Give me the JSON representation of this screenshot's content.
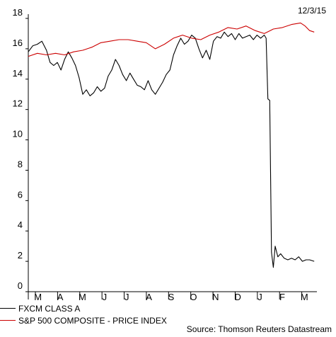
{
  "date_stamp": "12/3/15",
  "source": "Source: Thomson Reuters Datastream",
  "chart_data": {
    "type": "line",
    "x_tick_labels": [
      "M",
      "A",
      "M",
      "J",
      "J",
      "A",
      "S",
      "O",
      "N",
      "D",
      "J",
      "F",
      "M"
    ],
    "y_ticks": [
      0,
      2,
      4,
      6,
      8,
      10,
      12,
      14,
      16,
      18
    ],
    "ylim": [
      0,
      18
    ],
    "grid": false,
    "legend_placement": "bottom-left",
    "series": [
      {
        "name": "FXCM CLASS A",
        "color": "#000000",
        "points": [
          [
            0,
            15.8
          ],
          [
            0.5,
            16.2
          ],
          [
            1,
            16.3
          ],
          [
            1.5,
            16.5
          ],
          [
            2,
            15.9
          ],
          [
            2.4,
            15.1
          ],
          [
            2.8,
            14.9
          ],
          [
            3.2,
            15.1
          ],
          [
            3.6,
            14.6
          ],
          [
            4,
            15.3
          ],
          [
            4.4,
            15.8
          ],
          [
            4.8,
            15.4
          ],
          [
            5.2,
            14.9
          ],
          [
            5.6,
            14.1
          ],
          [
            6,
            13.0
          ],
          [
            6.4,
            13.3
          ],
          [
            6.8,
            12.9
          ],
          [
            7.2,
            13.1
          ],
          [
            7.6,
            13.5
          ],
          [
            8,
            13.2
          ],
          [
            8.4,
            13.4
          ],
          [
            8.8,
            14.2
          ],
          [
            9.2,
            14.6
          ],
          [
            9.6,
            15.3
          ],
          [
            10,
            14.9
          ],
          [
            10.4,
            14.3
          ],
          [
            10.8,
            13.9
          ],
          [
            11.2,
            14.4
          ],
          [
            11.6,
            14.0
          ],
          [
            12,
            13.6
          ],
          [
            12.4,
            13.5
          ],
          [
            12.8,
            13.3
          ],
          [
            13.2,
            13.9
          ],
          [
            13.6,
            13.3
          ],
          [
            14,
            13.0
          ],
          [
            14.4,
            13.4
          ],
          [
            14.8,
            13.8
          ],
          [
            15.2,
            14.3
          ],
          [
            15.6,
            14.6
          ],
          [
            16,
            15.6
          ],
          [
            16.4,
            16.2
          ],
          [
            16.8,
            16.7
          ],
          [
            17.2,
            16.3
          ],
          [
            17.6,
            16.5
          ],
          [
            18,
            16.9
          ],
          [
            18.4,
            16.7
          ],
          [
            18.8,
            16.0
          ],
          [
            19.2,
            15.4
          ],
          [
            19.6,
            15.9
          ],
          [
            20,
            15.3
          ],
          [
            20.4,
            16.5
          ],
          [
            20.8,
            16.8
          ],
          [
            21.2,
            16.7
          ],
          [
            21.6,
            17.1
          ],
          [
            22,
            16.8
          ],
          [
            22.4,
            17.0
          ],
          [
            22.8,
            16.6
          ],
          [
            23.2,
            17.0
          ],
          [
            23.6,
            16.7
          ],
          [
            24,
            16.8
          ],
          [
            24.4,
            16.9
          ],
          [
            24.8,
            16.6
          ],
          [
            25.2,
            16.9
          ],
          [
            25.6,
            16.7
          ],
          [
            26,
            16.9
          ],
          [
            26.2,
            16.7
          ],
          [
            26.4,
            12.7
          ],
          [
            26.6,
            12.6
          ],
          [
            26.8,
            2.6
          ],
          [
            27,
            1.6
          ],
          [
            27.2,
            3.0
          ],
          [
            27.5,
            2.3
          ],
          [
            27.8,
            2.5
          ],
          [
            28.2,
            2.2
          ],
          [
            28.6,
            2.1
          ],
          [
            29,
            2.2
          ],
          [
            29.4,
            2.1
          ],
          [
            29.8,
            2.3
          ],
          [
            30.2,
            2.0
          ],
          [
            30.6,
            2.1
          ],
          [
            31,
            2.1
          ],
          [
            31.5,
            2.0
          ]
        ]
      },
      {
        "name": "S&P 500 COMPOSITE - PRICE INDEX",
        "color": "#cc0000",
        "points": [
          [
            0,
            15.5
          ],
          [
            1,
            15.7
          ],
          [
            2,
            15.6
          ],
          [
            3,
            15.7
          ],
          [
            4,
            15.6
          ],
          [
            5,
            15.8
          ],
          [
            6,
            15.9
          ],
          [
            7,
            16.1
          ],
          [
            8,
            16.4
          ],
          [
            9,
            16.5
          ],
          [
            10,
            16.6
          ],
          [
            11,
            16.6
          ],
          [
            12,
            16.5
          ],
          [
            13,
            16.4
          ],
          [
            14,
            16.0
          ],
          [
            15,
            16.3
          ],
          [
            16,
            16.7
          ],
          [
            17,
            16.9
          ],
          [
            18,
            16.7
          ],
          [
            19,
            16.6
          ],
          [
            20,
            16.9
          ],
          [
            21,
            17.1
          ],
          [
            22,
            17.4
          ],
          [
            23,
            17.3
          ],
          [
            24,
            17.5
          ],
          [
            25,
            17.2
          ],
          [
            26,
            17.0
          ],
          [
            27,
            17.3
          ],
          [
            28,
            17.4
          ],
          [
            29,
            17.6
          ],
          [
            30,
            17.7
          ],
          [
            30.5,
            17.5
          ],
          [
            31,
            17.2
          ],
          [
            31.5,
            17.1
          ]
        ]
      }
    ]
  }
}
